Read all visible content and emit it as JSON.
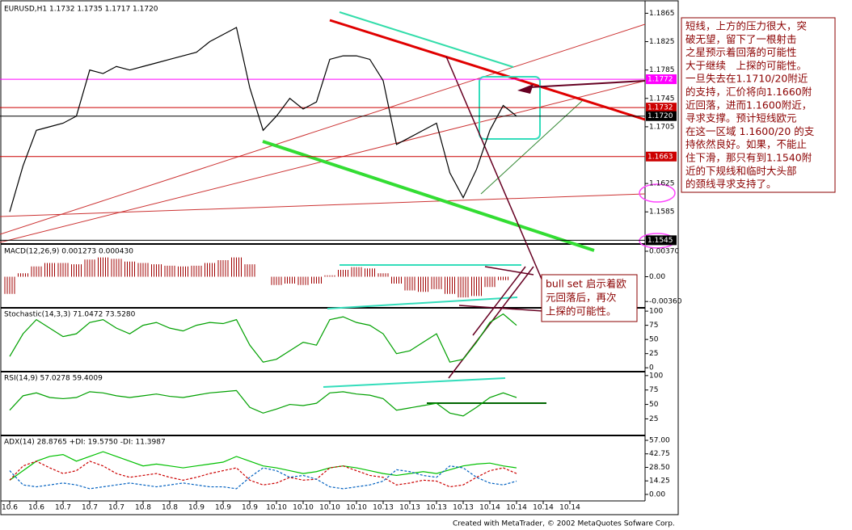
{
  "chart_data": [
    {
      "type": "line",
      "title": "EURUSD,H1  1.1732 1.1735 1.1717 1.1720",
      "categories": [
        "10.6",
        null,
        "10.6",
        null,
        "10.7",
        null,
        "10.7",
        null,
        "10.7",
        null,
        "10.8",
        null,
        "10.8",
        null,
        "10.9",
        null,
        "10.9",
        null,
        "10.9",
        null,
        "10.10",
        null,
        "10.10",
        null,
        "10.10",
        null,
        "10.10",
        null,
        "10.13",
        null,
        "10.13",
        null,
        "10.13",
        null,
        "10.13",
        null,
        "10.14",
        null,
        "10.14",
        null,
        "10.14",
        null,
        "10.14",
        null
      ],
      "series": [
        {
          "color": "#000000",
          "values": [
            1.1585,
            1.165,
            1.17,
            1.1705,
            1.171,
            1.172,
            1.1785,
            1.178,
            1.179,
            1.1785,
            1.179,
            1.1795,
            1.18,
            1.1805,
            1.181,
            1.1825,
            1.1835,
            1.1845,
            1.176,
            1.17,
            1.172,
            1.1745,
            1.173,
            1.174,
            1.18,
            1.1805,
            1.1805,
            1.18,
            1.177,
            1.168,
            1.169,
            1.17,
            1.171,
            1.164,
            1.1605,
            1.1645,
            1.17,
            1.1735,
            1.172,
            null,
            null,
            null,
            null,
            null
          ]
        }
      ],
      "ylim": [
        1.1542,
        1.1878
      ],
      "yticks": [
        1.1865,
        1.1825,
        1.1785,
        1.1745,
        1.1705,
        1.1625,
        1.1585
      ],
      "levels": [
        {
          "value": 1.1772,
          "color": "#ff00ff"
        },
        {
          "value": 1.1732,
          "color": "#cc0000"
        },
        {
          "value": 1.172,
          "label": "1.1720",
          "color": "#000000"
        },
        {
          "value": 1.1663,
          "color": "#cc0000"
        },
        {
          "value": 1.1545,
          "color": "#000000"
        }
      ]
    },
    {
      "type": "bar",
      "title": "MACD(12,26,9) 0.001273 0.000430",
      "series": [
        {
          "color": "#a00000",
          "values": [
            -0.0025,
            0.0005,
            0.0015,
            0.002,
            0.002,
            0.0018,
            0.0025,
            0.0028,
            0.0026,
            0.0022,
            0.002,
            0.0018,
            0.0016,
            0.0015,
            0.0016,
            0.002,
            0.0024,
            0.0028,
            0.0018,
            0,
            -0.0012,
            -0.001,
            -0.0012,
            -0.001,
            0.0002,
            0.001,
            0.0014,
            0.0012,
            0.0005,
            -0.001,
            -0.002,
            -0.0022,
            -0.0018,
            -0.0025,
            -0.003,
            -0.0028,
            -0.0015,
            -0.0005,
            0,
            null,
            null,
            null,
            null,
            null
          ]
        }
      ],
      "ylim": [
        -0.0044,
        0.0044
      ],
      "yticks": [
        {
          "value": 0.0037,
          "label": "0.00370"
        },
        {
          "value": 0,
          "label": "0.00"
        },
        {
          "value": -0.0036,
          "label": "-0.00360"
        }
      ]
    },
    {
      "type": "line",
      "title": "Stochastic(14,3,3) 71.0472 73.5280",
      "series": [
        {
          "color": "#00a000",
          "values": [
            20,
            60,
            85,
            70,
            55,
            60,
            80,
            85,
            70,
            60,
            75,
            80,
            70,
            65,
            75,
            80,
            78,
            85,
            40,
            10,
            15,
            30,
            45,
            40,
            85,
            90,
            80,
            75,
            60,
            25,
            30,
            45,
            60,
            10,
            15,
            45,
            80,
            95,
            75,
            null,
            null,
            null,
            null,
            null
          ]
        }
      ],
      "ylim": [
        -4,
        103
      ],
      "yticks": [
        100,
        75,
        50,
        25,
        0
      ]
    },
    {
      "type": "line",
      "title": "RSI(14,9) 57.0278 59.4009",
      "series": [
        {
          "color": "#00a000",
          "values": [
            40,
            65,
            70,
            62,
            60,
            62,
            72,
            70,
            65,
            62,
            65,
            68,
            64,
            62,
            66,
            70,
            72,
            74,
            45,
            35,
            42,
            50,
            48,
            52,
            70,
            72,
            68,
            66,
            60,
            40,
            44,
            48,
            52,
            35,
            30,
            45,
            62,
            70,
            62,
            null,
            null,
            null,
            null,
            null
          ]
        }
      ],
      "ylim": [
        -1,
        104
      ],
      "yticks": [
        100,
        75,
        50,
        25
      ]
    },
    {
      "type": "line",
      "title": "ADX(14) 28.8765 +DI: 19.5750 -DI: 11.3987",
      "series": [
        {
          "color": "#00c000",
          "values": [
            15,
            25,
            35,
            40,
            42,
            35,
            40,
            45,
            40,
            35,
            30,
            32,
            30,
            28,
            30,
            32,
            34,
            40,
            35,
            30,
            28,
            25,
            22,
            24,
            28,
            30,
            28,
            25,
            22,
            20,
            22,
            24,
            22,
            26,
            30,
            32,
            33,
            30,
            28,
            null,
            null,
            null,
            null,
            null
          ]
        },
        {
          "color": "#cc0000",
          "dashed": true,
          "values": [
            15,
            30,
            35,
            28,
            22,
            25,
            35,
            30,
            22,
            18,
            20,
            22,
            18,
            15,
            18,
            22,
            25,
            28,
            15,
            10,
            12,
            18,
            15,
            16,
            28,
            30,
            25,
            20,
            18,
            10,
            12,
            15,
            14,
            8,
            10,
            18,
            25,
            28,
            22,
            null,
            null,
            null,
            null,
            null
          ]
        },
        {
          "color": "#0060c0",
          "dashed": true,
          "values": [
            25,
            10,
            8,
            10,
            12,
            10,
            6,
            8,
            10,
            12,
            10,
            8,
            10,
            12,
            10,
            8,
            8,
            6,
            18,
            28,
            25,
            18,
            20,
            16,
            8,
            6,
            8,
            10,
            14,
            26,
            24,
            20,
            18,
            30,
            28,
            18,
            12,
            10,
            14,
            null,
            null,
            null,
            null,
            null
          ]
        }
      ],
      "ylim": [
        -4.3,
        60.4
      ],
      "yticks": [
        {
          "value": 57,
          "label": "57.00"
        },
        {
          "value": 42.75,
          "label": "42.75"
        },
        {
          "value": 28.5,
          "label": "28.50"
        },
        {
          "value": 14.25,
          "label": "14.25"
        },
        {
          "value": 0,
          "label": "0.00"
        }
      ]
    }
  ],
  "notes": {
    "analysis": [
      "短线，上方的压力很大，突",
      "破无望，留下了一根射击",
      "之星预示着回落的可能性",
      "大于继续　上探的可能性。",
      "一旦失去在1.1710/20附近",
      "的支持，汇价将向1.1660附",
      "近回落，进而1.1600附近，",
      "寻求支撑。预计短线欧元",
      "在这一区域 1.1600/20 的支",
      "持依然良好。如果，不能止",
      "住下滑，那只有到1.1540附",
      "近的下规线和临时大头部",
      "的颈线寻求支持了。"
    ],
    "bull": [
      "bull set 启示着欧",
      "元回落后，再次",
      "上探的可能性。"
    ]
  },
  "footer": "Created with MetaTrader, © 2002 MetaQuotes Sofware Corp."
}
